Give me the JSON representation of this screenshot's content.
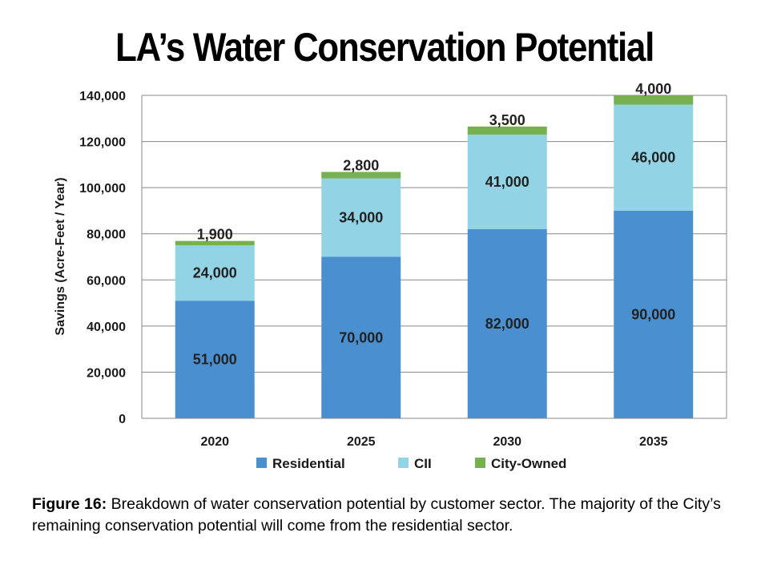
{
  "title": "LA’s Water Conservation Potential",
  "chart_data": {
    "type": "bar",
    "stacked": true,
    "categories": [
      "2020",
      "2025",
      "2030",
      "2035"
    ],
    "series": [
      {
        "name": "Residential",
        "color": "#4a8fd0",
        "values": [
          51000,
          70000,
          82000,
          90000
        ],
        "labels": [
          "51,000",
          "70,000",
          "82,000",
          "90,000"
        ]
      },
      {
        "name": "CII",
        "color": "#92d4e6",
        "values": [
          24000,
          34000,
          41000,
          46000
        ],
        "labels": [
          "24,000",
          "34,000",
          "41,000",
          "46,000"
        ]
      },
      {
        "name": "City-Owned",
        "color": "#77b04f",
        "values": [
          1900,
          2800,
          3500,
          4000
        ],
        "labels": [
          "1,900",
          "2,800",
          "3,500",
          "4,000"
        ]
      }
    ],
    "ylabel": "Savings (Acre-Feet / Year)",
    "ylim": [
      0,
      140000
    ],
    "yticks": [
      0,
      20000,
      40000,
      60000,
      80000,
      100000,
      120000,
      140000
    ],
    "ytick_labels": [
      "0",
      "20,000",
      "40,000",
      "60,000",
      "80,000",
      "100,000",
      "120,000",
      "140,000"
    ],
    "grid": true,
    "legend_position": "bottom"
  },
  "caption": {
    "lead": "Figure 16:",
    "text": " Breakdown of water conservation potential by customer sector. The majority of the City’s remaining conservation potential will come from the residential sector."
  }
}
